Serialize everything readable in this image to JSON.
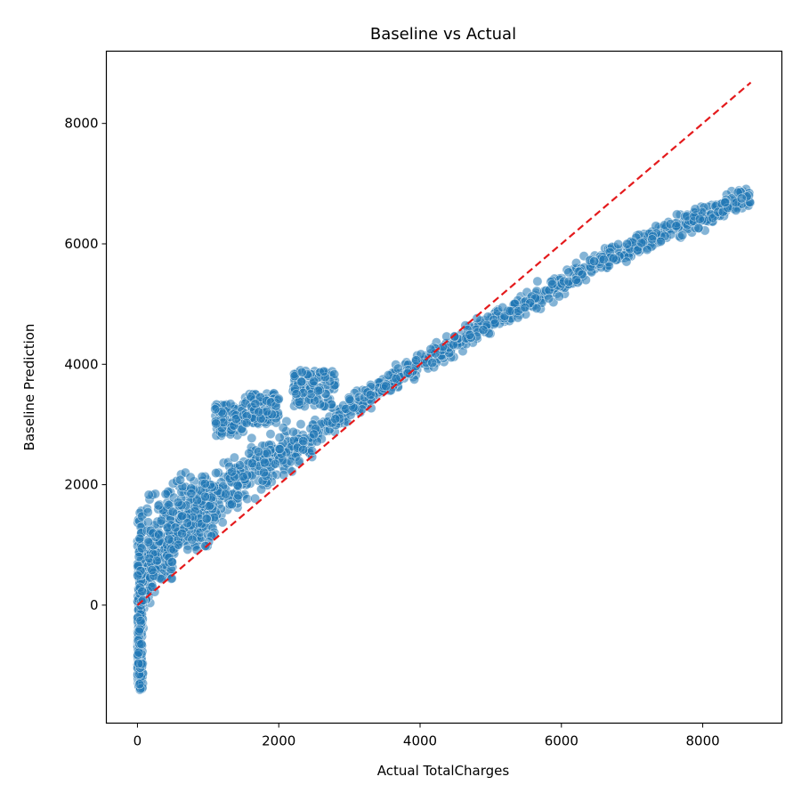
{
  "chart_data": {
    "type": "scatter",
    "title": "Baseline vs Actual",
    "xlabel": "Actual TotalCharges",
    "ylabel": "Baseline Prediction",
    "xlim": [
      -440,
      9120
    ],
    "ylim": [
      -1960,
      9200
    ],
    "xticks": [
      0,
      2000,
      4000,
      6000,
      8000
    ],
    "yticks": [
      0,
      2000,
      4000,
      6000,
      8000
    ],
    "xtick_labels": [
      "0",
      "2000",
      "4000",
      "6000",
      "8000"
    ],
    "ytick_labels": [
      "0",
      "2000",
      "4000",
      "6000",
      "8000"
    ],
    "grid": false,
    "colors": {
      "points": "#1f77b4",
      "reference_line": "#e41a1c"
    },
    "reference_line": {
      "name": "y = x",
      "x": [
        0,
        8680
      ],
      "y": [
        0,
        8680
      ],
      "style": "dashed"
    },
    "series": [
      {
        "name": "",
        "trend_x": [
          0,
          100,
          200,
          400,
          700,
          1000,
          1400,
          1800,
          2200,
          2600,
          3000,
          3500,
          4000,
          4500,
          5000,
          5500,
          6000,
          6500,
          7000,
          7500,
          8000,
          8500,
          8680
        ],
        "trend_y": [
          -800,
          350,
          700,
          1000,
          1350,
          1700,
          2050,
          2350,
          2600,
          2900,
          3250,
          3650,
          4000,
          4350,
          4700,
          5000,
          5350,
          5700,
          5950,
          6250,
          6450,
          6700,
          6780
        ],
        "clusters": [
          {
            "x": [
              0,
              80
            ],
            "y": [
              -1420,
              1600
            ]
          },
          {
            "x": [
              130,
              500
            ],
            "y": [
              400,
              1900
            ]
          },
          {
            "x": [
              500,
              1100
            ],
            "y": [
              900,
              2200
            ]
          },
          {
            "x": [
              1100,
              1500
            ],
            "y": [
              2800,
              3350
            ]
          },
          {
            "x": [
              1500,
              2000
            ],
            "y": [
              3000,
              3520
            ]
          },
          {
            "x": [
              2200,
              2800
            ],
            "y": [
              3300,
              3900
            ]
          }
        ]
      }
    ]
  }
}
